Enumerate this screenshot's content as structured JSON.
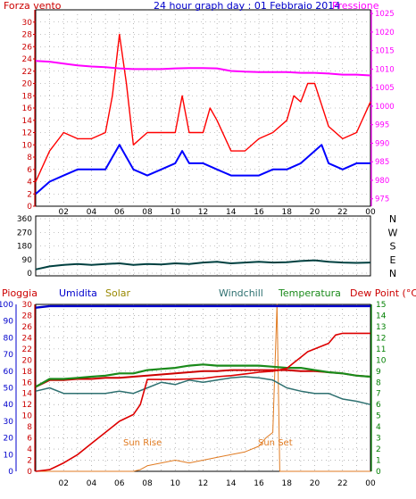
{
  "header": {
    "wind_title": "Forza vento",
    "date_title": "24 hour graph day : 01 Febbraio 2014",
    "pressure_title": "Pressione"
  },
  "x_ticks": [
    "02",
    "04",
    "06",
    "08",
    "10",
    "12",
    "14",
    "16",
    "18",
    "20",
    "22",
    "00"
  ],
  "colors": {
    "wind": "#ff0000",
    "wind_avg": "#0000ff",
    "pressure": "#ff00ff",
    "dir": "#004040",
    "rain": "#dd0000",
    "humidity": "#0000cc",
    "solar": "#e07a20",
    "windchill": "#2e7070",
    "temperature": "#1a8a1a",
    "dewpoint": "#cc0000",
    "frame": "#000000",
    "grid": "#8a8a8a",
    "left_axis": "#cc0000",
    "right_axis_top": "#ff00ff",
    "bottom_left_axis": "#0000cc",
    "bottom_right_axis": "#008000"
  },
  "legend": {
    "pioggia": "Pioggia",
    "umidita": "Umidita",
    "solar": "Solar",
    "windchill": "Windchill",
    "temperatura": "Temperatura",
    "dewpoint": "Dew Point (°C)"
  },
  "annotations": {
    "sunrise": "Sun Rise",
    "sunset": "Sun Set"
  },
  "chart_data": [
    {
      "type": "line",
      "x_range": [
        0,
        24
      ],
      "y_left_label": "Forza vento",
      "y_left_ticks": [
        0,
        2,
        4,
        6,
        8,
        10,
        12,
        14,
        16,
        18,
        20,
        22,
        24,
        26,
        28,
        30
      ],
      "y_left_range": [
        0,
        32
      ],
      "y_right_label": "Pressione",
      "y_right_ticks": [
        975,
        980,
        985,
        990,
        995,
        1000,
        1005,
        1010,
        1015,
        1020,
        1025
      ],
      "y_right_range": [
        973,
        1026
      ],
      "series": [
        {
          "name": "wind_gust",
          "axis": "left",
          "x": [
            0,
            1,
            2,
            3,
            4,
            5,
            5.5,
            6,
            6.5,
            7,
            8,
            9,
            10,
            10.5,
            11,
            12,
            12.5,
            13,
            14,
            15,
            16,
            17,
            18,
            18.5,
            19,
            19.5,
            20,
            21,
            22,
            23,
            24
          ],
          "values": [
            4,
            9,
            12,
            11,
            11,
            12,
            18,
            28,
            20,
            10,
            12,
            12,
            12,
            18,
            12,
            12,
            16,
            14,
            9,
            9,
            11,
            12,
            14,
            18,
            17,
            20,
            20,
            13,
            11,
            12,
            17
          ]
        },
        {
          "name": "wind_avg",
          "axis": "left",
          "x": [
            0,
            0.5,
            1,
            2,
            3,
            4,
            5,
            5.5,
            6,
            6.5,
            7,
            8,
            9,
            10,
            10.5,
            11,
            12,
            13,
            14,
            15,
            16,
            17,
            18,
            19,
            20,
            20.5,
            21,
            22,
            23,
            24
          ],
          "values": [
            2,
            3,
            4,
            5,
            6,
            6,
            6,
            8,
            10,
            8,
            6,
            5,
            6,
            7,
            9,
            7,
            7,
            6,
            5,
            5,
            5,
            6,
            6,
            7,
            9,
            10,
            7,
            6,
            7,
            7
          ]
        },
        {
          "name": "pressure",
          "axis": "right",
          "x": [
            0,
            1,
            2,
            3,
            4,
            5,
            6,
            7,
            8,
            9,
            10,
            11,
            12,
            13,
            14,
            15,
            16,
            17,
            18,
            19,
            20,
            21,
            22,
            23,
            24
          ],
          "values": [
            1012.2,
            1012,
            1011.5,
            1011,
            1010.7,
            1010.5,
            1010.2,
            1010,
            1010,
            1010,
            1010.2,
            1010.3,
            1010.3,
            1010.2,
            1009.5,
            1009.3,
            1009.2,
            1009.2,
            1009.2,
            1009,
            1009,
            1008.8,
            1008.5,
            1008.5,
            1008.3
          ]
        }
      ]
    },
    {
      "type": "line",
      "x_range": [
        0,
        24
      ],
      "y_ticks": [
        0,
        90,
        180,
        270,
        360
      ],
      "y_range": [
        0,
        360
      ],
      "y_right_labels": [
        "N",
        "W",
        "S",
        "E",
        "N"
      ],
      "series": [
        {
          "name": "wind_direction",
          "x": [
            0,
            1,
            2,
            3,
            4,
            5,
            6,
            7,
            8,
            9,
            10,
            11,
            12,
            13,
            14,
            15,
            16,
            17,
            18,
            19,
            20,
            21,
            22,
            23,
            24
          ],
          "values": [
            25,
            45,
            55,
            60,
            55,
            60,
            65,
            55,
            60,
            58,
            65,
            60,
            70,
            75,
            65,
            70,
            75,
            70,
            72,
            80,
            85,
            75,
            70,
            68,
            70
          ]
        }
      ]
    },
    {
      "type": "line",
      "x_range": [
        0,
        24
      ],
      "y_left_ticks": [
        0,
        10,
        20,
        30,
        40,
        50,
        60,
        70,
        80,
        90,
        100
      ],
      "y_left_range": [
        0,
        100
      ],
      "y_left2_ticks": [
        0,
        2,
        4,
        6,
        8,
        10,
        12,
        14,
        16,
        18,
        20,
        22,
        24,
        26,
        28,
        30
      ],
      "y_left2_range": [
        0,
        30
      ],
      "y_right_ticks": [
        0,
        1,
        2,
        3,
        4,
        5,
        6,
        7,
        8,
        9,
        10,
        11,
        12,
        13,
        14,
        15
      ],
      "y_right_range": [
        0,
        15
      ],
      "series": [
        {
          "name": "humidity",
          "axis": "left",
          "x": [
            0,
            1,
            24
          ],
          "values": [
            98,
            99,
            99
          ]
        },
        {
          "name": "rain",
          "axis": "left2",
          "x": [
            0,
            1,
            2,
            3,
            4,
            5,
            6,
            7,
            7.5,
            8,
            9,
            10,
            11,
            12,
            13,
            14,
            15,
            16,
            17,
            18,
            18.5,
            19,
            19.5,
            20,
            20.5,
            21,
            21.5,
            22,
            23,
            24
          ],
          "values": [
            0,
            0.3,
            1.5,
            3,
            5,
            7,
            9,
            10.2,
            12,
            16.5,
            16.5,
            16.5,
            16.6,
            16.7,
            17,
            17.2,
            17.5,
            17.8,
            18,
            18.5,
            19.5,
            20.5,
            21.5,
            22,
            22.5,
            23,
            24.5,
            24.8,
            24.8,
            24.8
          ]
        },
        {
          "name": "solar",
          "axis": "left2",
          "x": [
            0,
            6,
            7,
            7.5,
            8,
            9,
            10,
            11,
            12,
            13,
            14,
            15,
            16,
            16.5,
            17,
            17.3,
            17.5,
            18,
            24
          ],
          "values": [
            0,
            0,
            0,
            0.3,
            1,
            1.5,
            2,
            1.5,
            2,
            2.5,
            3,
            3.5,
            4.5,
            6,
            7,
            30,
            0,
            0,
            0
          ]
        },
        {
          "name": "windchill",
          "axis": "right",
          "x": [
            0,
            1,
            2,
            3,
            4,
            5,
            6,
            7,
            8,
            9,
            10,
            11,
            12,
            13,
            14,
            15,
            16,
            17,
            18,
            19,
            20,
            21,
            22,
            23,
            24
          ],
          "values": [
            7.2,
            7.5,
            7,
            7,
            7,
            7,
            7.2,
            7,
            7.5,
            8,
            7.8,
            8.2,
            8,
            8.2,
            8.4,
            8.5,
            8.4,
            8.2,
            7.5,
            7.2,
            7,
            7,
            6.5,
            6.3,
            6
          ]
        },
        {
          "name": "temperature",
          "axis": "right",
          "x": [
            0,
            1,
            2,
            3,
            4,
            5,
            6,
            7,
            8,
            9,
            10,
            11,
            12,
            13,
            14,
            15,
            16,
            17,
            18,
            19,
            20,
            21,
            22,
            23,
            24
          ],
          "values": [
            7.6,
            8.3,
            8.3,
            8.4,
            8.5,
            8.6,
            8.8,
            8.8,
            9.1,
            9.2,
            9.3,
            9.5,
            9.6,
            9.5,
            9.5,
            9.5,
            9.5,
            9.4,
            9.3,
            9.3,
            9.1,
            8.9,
            8.8,
            8.6,
            8.5
          ]
        },
        {
          "name": "dewpoint",
          "axis": "right",
          "x": [
            0,
            1,
            2,
            3,
            4,
            5,
            6,
            7,
            8,
            9,
            10,
            11,
            12,
            13,
            14,
            15,
            16,
            17,
            18,
            19,
            20,
            21,
            22,
            23,
            24
          ],
          "values": [
            7.6,
            8.2,
            8.2,
            8.3,
            8.3,
            8.4,
            8.4,
            8.5,
            8.6,
            8.7,
            8.8,
            8.9,
            9,
            9,
            9.1,
            9.1,
            9.1,
            9.1,
            9.1,
            9,
            9,
            8.9,
            8.8,
            8.6,
            8.5
          ]
        }
      ]
    }
  ]
}
